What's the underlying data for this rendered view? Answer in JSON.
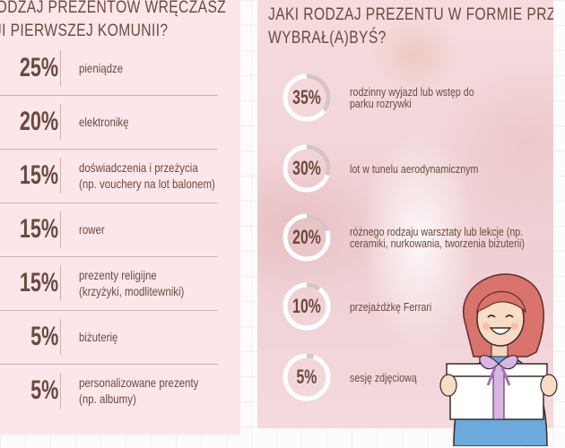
{
  "left": {
    "title_line1": "rodzaj prezentów wręczasz",
    "title_line2": "zji pierwszej komunii?",
    "rows": [
      {
        "pct": "25%",
        "label1": "pieniądze",
        "label2": ""
      },
      {
        "pct": "20%",
        "label1": "elektronikę",
        "label2": ""
      },
      {
        "pct": "15%",
        "label1": "doświadczenia i przeżycia",
        "label2": "(np. vouchery na lot balonem)"
      },
      {
        "pct": "15%",
        "label1": "rower",
        "label2": ""
      },
      {
        "pct": "15%",
        "label1": "prezenty religijne",
        "label2": "(krzyżyki, modlitewniki)"
      },
      {
        "pct": "5%",
        "label1": "biżuterię",
        "label2": ""
      },
      {
        "pct": "5%",
        "label1": "personalizowane prezenty",
        "label2": "(np. albumy)"
      }
    ]
  },
  "right": {
    "title_line1": "Jaki rodzaj prezentu w formie przeżyć",
    "title_line2": "wybrał(a)byś?",
    "items": [
      {
        "pct": "35%",
        "value": 35,
        "label1": "rodzinny wyjazd lub wstęp do",
        "label2": "parku rozrywki"
      },
      {
        "pct": "30%",
        "value": 30,
        "label1": "lot w tunelu aerodynamicznym",
        "label2": ""
      },
      {
        "pct": "20%",
        "value": 20,
        "label1": "różnego rodzaju warsztaty lub lekcje (np.",
        "label2": "ceramiki, nurkowania, tworzenia biżuterii)"
      },
      {
        "pct": "10%",
        "value": 10,
        "label1": "przejażdżkę Ferrari",
        "label2": ""
      },
      {
        "pct": "5%",
        "value": 5,
        "label1": "sesję zdjęciową",
        "label2": ""
      }
    ]
  },
  "colors": {
    "panel": "#fde6ea",
    "text": "#6b4a3e",
    "ring_track": "#ffffff",
    "ring_fill": "#d9c4c4"
  }
}
